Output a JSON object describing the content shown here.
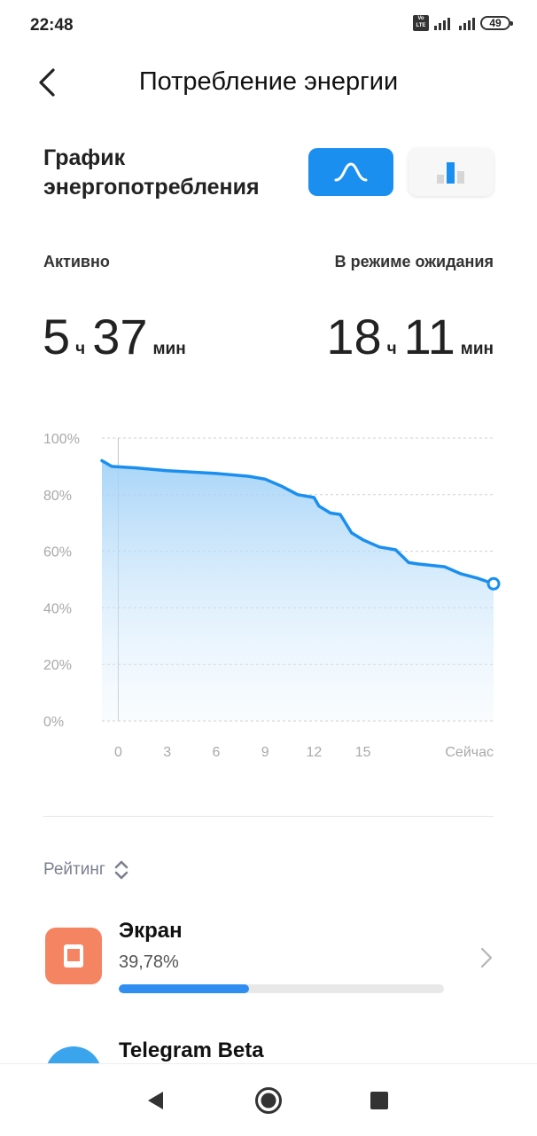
{
  "status_bar": {
    "time": "22:48",
    "battery": "49",
    "icons": [
      "volte-icon",
      "signal-icon",
      "signal-icon",
      "battery-icon"
    ]
  },
  "header": {
    "title": "Потребление энергии",
    "back_icon": "chevron-left-icon"
  },
  "chart_section": {
    "heading_line1": "График",
    "heading_line2": "энергопотребления",
    "toggles": [
      {
        "icon": "curve-icon",
        "selected": true
      },
      {
        "icon": "bar-chart-icon",
        "selected": false
      }
    ]
  },
  "stats": {
    "active_label": "Активно",
    "active_hours": "5",
    "active_hours_unit": "ч",
    "active_minutes": "37",
    "active_minutes_unit": "мин",
    "standby_label": "В режиме ожидания",
    "standby_hours": "18",
    "standby_hours_unit": "ч",
    "standby_minutes": "11",
    "standby_minutes_unit": "мин"
  },
  "chart_data": {
    "type": "area",
    "y_tick_labels": [
      "100%",
      "80%",
      "60%",
      "40%",
      "20%",
      "0%"
    ],
    "x_tick_labels": [
      "0",
      "3",
      "6",
      "9",
      "12",
      "15",
      "Сейчас"
    ],
    "x_tick_values": [
      0,
      3,
      6,
      9,
      12,
      15,
      23
    ],
    "ylim": [
      0,
      100
    ],
    "xlim": [
      -1,
      23
    ],
    "grid": true,
    "line_color": "#1a8ff0",
    "x": [
      -1,
      -0.4,
      1,
      3,
      6,
      8,
      9,
      10,
      11,
      12,
      12.3,
      13,
      13.6,
      14.3,
      15,
      16,
      17,
      17.8,
      18.4,
      20,
      21,
      22,
      23
    ],
    "y": [
      92,
      90,
      89.5,
      88.5,
      87.5,
      86.5,
      85.5,
      83,
      80,
      79,
      76,
      73.5,
      73,
      66.5,
      64,
      61.5,
      60.5,
      56,
      55.5,
      54.5,
      52,
      50.5,
      48.5
    ]
  },
  "rating": {
    "label": "Рейтинг",
    "sort_icon": "sort-updown-icon"
  },
  "items": [
    {
      "name": "Экран",
      "percent": "39,78%",
      "fraction": 0.4,
      "icon": "screen-icon",
      "color": "#f58462"
    },
    {
      "name": "Telegram Beta",
      "icon": "telegram-icon",
      "color": "#3aa5ec"
    }
  ],
  "navbar": {
    "icons": [
      "back-triangle-icon",
      "home-circle-icon",
      "recents-square-icon"
    ]
  }
}
